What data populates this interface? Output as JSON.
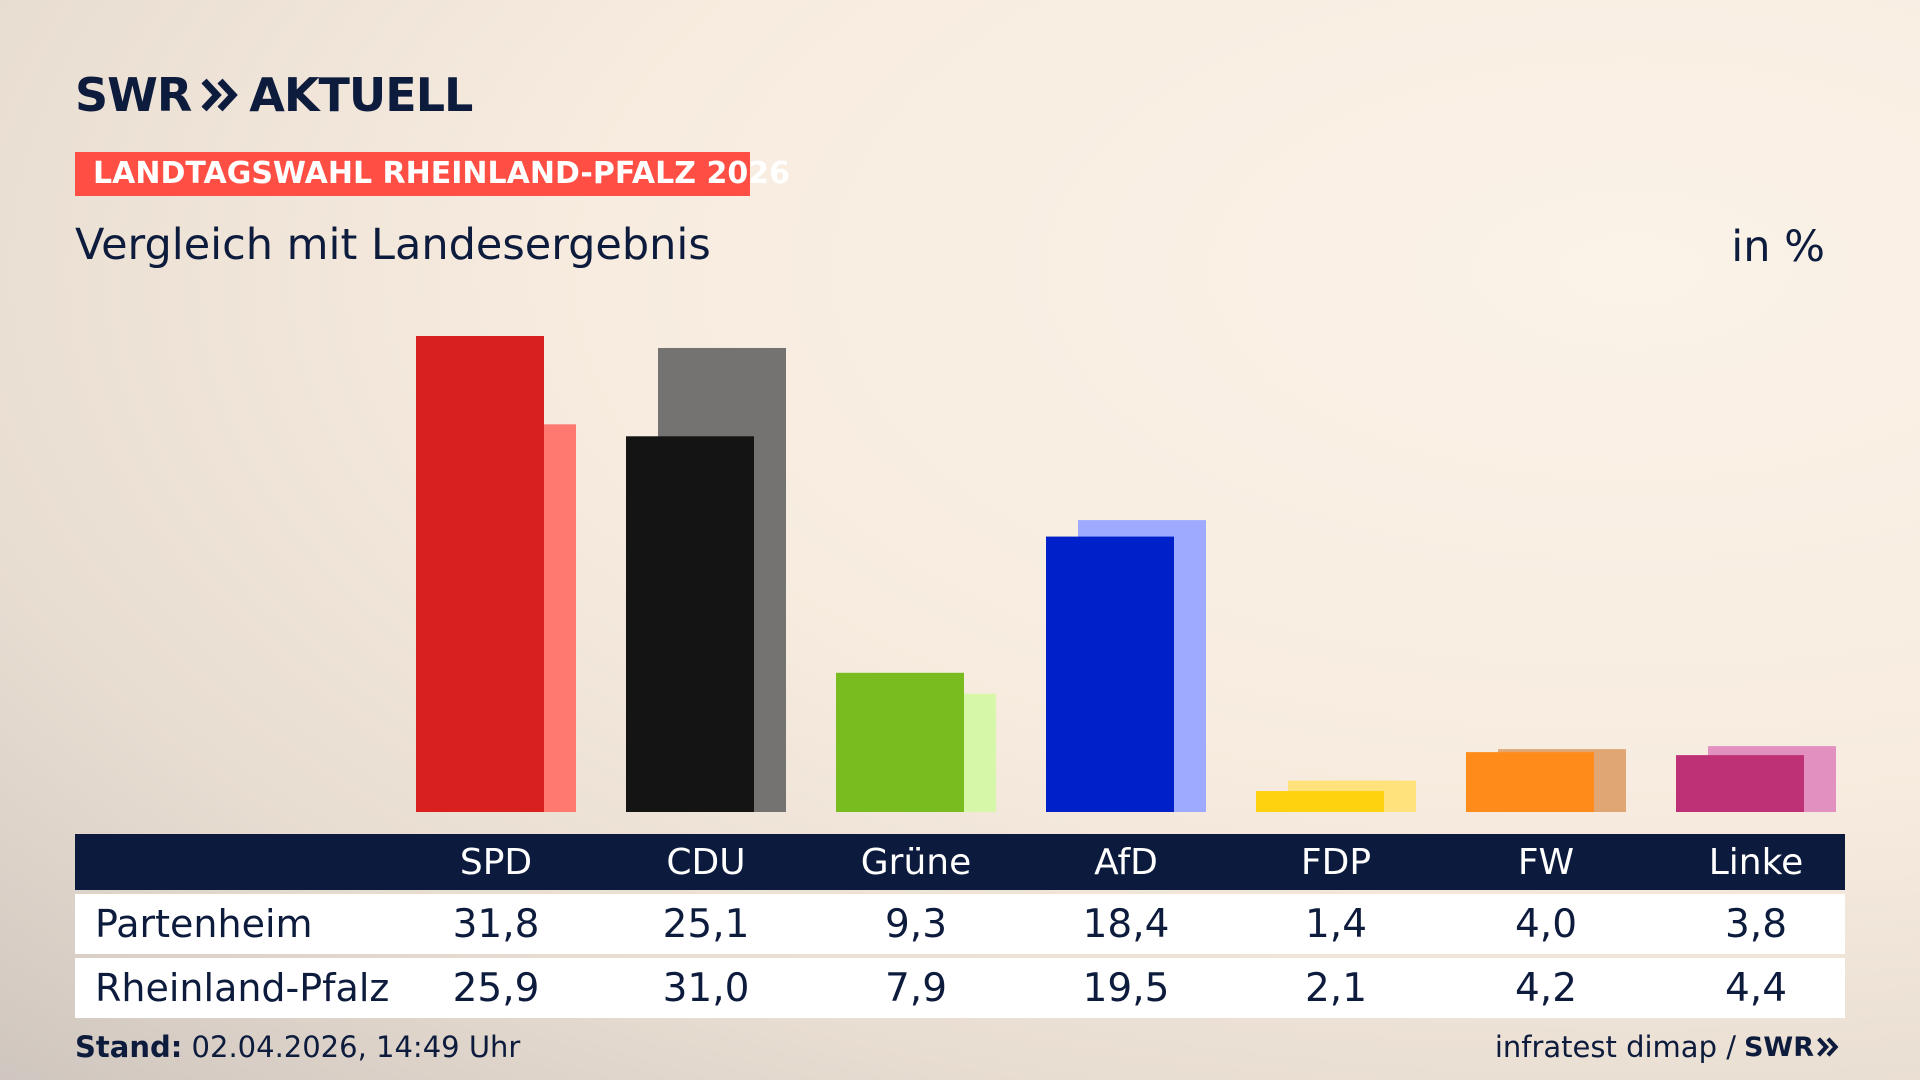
{
  "brand": {
    "swr": "SWR",
    "aktuell": "AKTUELL"
  },
  "tag": "LANDTAGSWAHL RHEINLAND-PFALZ 2026",
  "subtitle": "Vergleich mit Landesergebnis",
  "unit": "in %",
  "colors": {
    "SPD": [
      "#d8201f",
      "#ff7970"
    ],
    "CDU": [
      "#141414",
      "#747372"
    ],
    "Grüne": [
      "#78bc1f",
      "#d7f7a8"
    ],
    "AfD": [
      "#0020c9",
      "#9eaaff"
    ],
    "FDP": [
      "#ffd20f",
      "#ffe27b"
    ],
    "FW": [
      "#ff8c1a",
      "#e0a674"
    ],
    "Linke": [
      "#bf3177",
      "#e290c0"
    ]
  },
  "chart_data": {
    "type": "bar",
    "categories": [
      "SPD",
      "CDU",
      "Grüne",
      "AfD",
      "FDP",
      "FW",
      "Linke"
    ],
    "series": [
      {
        "name": "Partenheim",
        "values": [
          31.8,
          25.1,
          9.3,
          18.4,
          1.4,
          4.0,
          3.8
        ]
      },
      {
        "name": "Rheinland-Pfalz",
        "values": [
          25.9,
          31.0,
          7.9,
          19.5,
          2.1,
          4.2,
          4.4
        ]
      }
    ],
    "title": "Vergleich mit Landesergebnis",
    "ylabel": "in %",
    "ylim": [
      0,
      31.8
    ],
    "grid": false
  },
  "table": {
    "rows": [
      {
        "label": "Partenheim",
        "values": [
          "31,8",
          "25,1",
          "9,3",
          "18,4",
          "1,4",
          "4,0",
          "3,8"
        ]
      },
      {
        "label": "Rheinland-Pfalz",
        "values": [
          "25,9",
          "31,0",
          "7,9",
          "19,5",
          "2,1",
          "4,2",
          "4,4"
        ]
      }
    ]
  },
  "footer": {
    "stand_label": "Stand:",
    "stand_value": " 02.04.2026, 14:49 Uhr",
    "source": "infratest dimap /",
    "source_brand": "SWR"
  }
}
